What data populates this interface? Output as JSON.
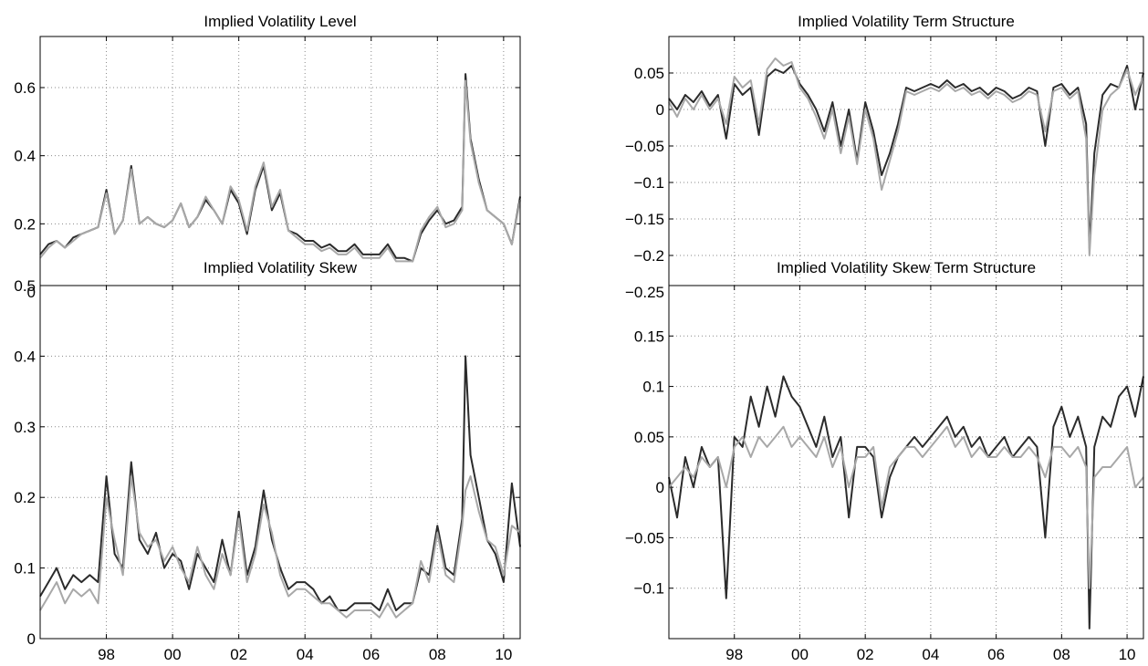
{
  "chart_data": [
    {
      "type": "line",
      "title": "Implied Volatility Level",
      "xlim": [
        1996.0,
        2010.5
      ],
      "ylim": [
        0,
        0.75
      ],
      "xticks": [
        1998,
        2000,
        2002,
        2004,
        2006,
        2008,
        2010
      ],
      "xtick_labels": [
        "98",
        "00",
        "02",
        "04",
        "06",
        "08",
        "10"
      ],
      "yticks": [
        0,
        0.2,
        0.4,
        0.6
      ],
      "ytick_labels": [
        "0",
        "0.2",
        "0.4",
        "0.6"
      ],
      "grid": true,
      "colors": [
        "#2b2b2b",
        "#a8a8a8"
      ],
      "x": [
        1996.0,
        1996.25,
        1996.5,
        1996.75,
        1997.0,
        1997.25,
        1997.5,
        1997.75,
        1998.0,
        1998.25,
        1998.5,
        1998.75,
        1999.0,
        1999.25,
        1999.5,
        1999.75,
        2000.0,
        2000.25,
        2000.5,
        2000.75,
        2001.0,
        2001.25,
        2001.5,
        2001.75,
        2002.0,
        2002.25,
        2002.5,
        2002.75,
        2003.0,
        2003.25,
        2003.5,
        2003.75,
        2004.0,
        2004.25,
        2004.5,
        2004.75,
        2005.0,
        2005.25,
        2005.5,
        2005.75,
        2006.0,
        2006.25,
        2006.5,
        2006.75,
        2007.0,
        2007.25,
        2007.5,
        2007.75,
        2008.0,
        2008.25,
        2008.5,
        2008.75,
        2008.85,
        2009.0,
        2009.25,
        2009.5,
        2009.75,
        2010.0,
        2010.25,
        2010.5
      ],
      "series": [
        {
          "values": [
            0.11,
            0.14,
            0.15,
            0.13,
            0.16,
            0.17,
            0.18,
            0.19,
            0.3,
            0.17,
            0.21,
            0.37,
            0.2,
            0.22,
            0.2,
            0.19,
            0.21,
            0.26,
            0.19,
            0.22,
            0.27,
            0.24,
            0.2,
            0.3,
            0.26,
            0.17,
            0.3,
            0.37,
            0.24,
            0.29,
            0.18,
            0.17,
            0.15,
            0.15,
            0.13,
            0.14,
            0.12,
            0.12,
            0.14,
            0.11,
            0.11,
            0.11,
            0.14,
            0.1,
            0.1,
            0.09,
            0.17,
            0.21,
            0.24,
            0.2,
            0.21,
            0.25,
            0.64,
            0.45,
            0.33,
            0.24,
            0.22,
            0.2,
            0.14,
            0.28
          ]
        },
        {
          "values": [
            0.1,
            0.13,
            0.15,
            0.13,
            0.15,
            0.17,
            0.18,
            0.19,
            0.29,
            0.17,
            0.21,
            0.36,
            0.2,
            0.22,
            0.2,
            0.19,
            0.21,
            0.26,
            0.19,
            0.22,
            0.28,
            0.24,
            0.2,
            0.31,
            0.27,
            0.18,
            0.31,
            0.38,
            0.25,
            0.3,
            0.18,
            0.16,
            0.14,
            0.14,
            0.12,
            0.13,
            0.11,
            0.11,
            0.13,
            0.1,
            0.1,
            0.1,
            0.13,
            0.09,
            0.09,
            0.09,
            0.18,
            0.22,
            0.25,
            0.19,
            0.2,
            0.24,
            0.62,
            0.44,
            0.32,
            0.24,
            0.22,
            0.2,
            0.14,
            0.27
          ]
        }
      ]
    },
    {
      "type": "line",
      "title": "Implied Volatility Term Structure",
      "xlim": [
        1996.0,
        2010.5
      ],
      "ylim": [
        -0.25,
        0.1
      ],
      "xticks": [
        1998,
        2000,
        2002,
        2004,
        2006,
        2008,
        2010
      ],
      "xtick_labels": [
        "98",
        "00",
        "02",
        "04",
        "06",
        "08",
        "10"
      ],
      "yticks": [
        -0.25,
        -0.2,
        -0.15,
        -0.1,
        -0.05,
        0,
        0.05
      ],
      "ytick_labels": [
        "−0.25",
        "−0.2",
        "−0.15",
        "−0.1",
        "−0.05",
        "0",
        "0.05"
      ],
      "grid": true,
      "colors": [
        "#2b2b2b",
        "#a8a8a8"
      ],
      "x": [
        1996.0,
        1996.25,
        1996.5,
        1996.75,
        1997.0,
        1997.25,
        1997.5,
        1997.75,
        1998.0,
        1998.25,
        1998.5,
        1998.75,
        1999.0,
        1999.25,
        1999.5,
        1999.75,
        2000.0,
        2000.25,
        2000.5,
        2000.75,
        2001.0,
        2001.25,
        2001.5,
        2001.75,
        2002.0,
        2002.25,
        2002.5,
        2002.75,
        2003.0,
        2003.25,
        2003.5,
        2003.75,
        2004.0,
        2004.25,
        2004.5,
        2004.75,
        2005.0,
        2005.25,
        2005.5,
        2005.75,
        2006.0,
        2006.25,
        2006.5,
        2006.75,
        2007.0,
        2007.25,
        2007.5,
        2007.75,
        2008.0,
        2008.25,
        2008.5,
        2008.75,
        2008.85,
        2009.0,
        2009.25,
        2009.5,
        2009.75,
        2010.0,
        2010.25,
        2010.5
      ],
      "series": [
        {
          "values": [
            0.015,
            0.0,
            0.02,
            0.01,
            0.025,
            0.005,
            0.02,
            -0.04,
            0.035,
            0.02,
            0.03,
            -0.035,
            0.045,
            0.055,
            0.05,
            0.06,
            0.035,
            0.02,
            0.0,
            -0.03,
            0.01,
            -0.05,
            0.0,
            -0.07,
            0.01,
            -0.03,
            -0.09,
            -0.06,
            -0.02,
            0.03,
            0.025,
            0.03,
            0.035,
            0.03,
            0.04,
            0.03,
            0.035,
            0.025,
            0.03,
            0.02,
            0.03,
            0.025,
            0.015,
            0.02,
            0.03,
            0.025,
            -0.05,
            0.03,
            0.035,
            0.02,
            0.03,
            -0.02,
            -0.19,
            -0.06,
            0.02,
            0.035,
            0.03,
            0.06,
            0.0,
            0.05
          ]
        },
        {
          "values": [
            0.01,
            -0.01,
            0.015,
            0.0,
            0.02,
            0.0,
            0.015,
            -0.02,
            0.045,
            0.03,
            0.04,
            -0.02,
            0.055,
            0.07,
            0.06,
            0.065,
            0.03,
            0.015,
            -0.01,
            -0.04,
            0.0,
            -0.06,
            -0.01,
            -0.075,
            0.0,
            -0.04,
            -0.11,
            -0.07,
            -0.03,
            0.025,
            0.02,
            0.025,
            0.03,
            0.025,
            0.035,
            0.025,
            0.03,
            0.02,
            0.025,
            0.015,
            0.025,
            0.02,
            0.01,
            0.015,
            0.025,
            0.02,
            -0.03,
            0.025,
            0.03,
            0.015,
            0.025,
            -0.04,
            -0.2,
            -0.09,
            0.0,
            0.02,
            0.03,
            0.055,
            0.02,
            0.045
          ]
        }
      ]
    },
    {
      "type": "line",
      "title": "Implied Volatility Skew",
      "xlim": [
        1996.0,
        2010.5
      ],
      "ylim": [
        0,
        0.5
      ],
      "xticks": [
        1998,
        2000,
        2002,
        2004,
        2006,
        2008,
        2010
      ],
      "xtick_labels": [
        "98",
        "00",
        "02",
        "04",
        "06",
        "08",
        "10"
      ],
      "yticks": [
        0,
        0.1,
        0.2,
        0.3,
        0.4,
        0.5
      ],
      "ytick_labels": [
        "0",
        "0.1",
        "0.2",
        "0.3",
        "0.4",
        "0.5"
      ],
      "grid": true,
      "colors": [
        "#2b2b2b",
        "#a8a8a8"
      ],
      "x": [
        1996.0,
        1996.25,
        1996.5,
        1996.75,
        1997.0,
        1997.25,
        1997.5,
        1997.75,
        1998.0,
        1998.25,
        1998.5,
        1998.75,
        1999.0,
        1999.25,
        1999.5,
        1999.75,
        2000.0,
        2000.25,
        2000.5,
        2000.75,
        2001.0,
        2001.25,
        2001.5,
        2001.75,
        2002.0,
        2002.25,
        2002.5,
        2002.75,
        2003.0,
        2003.25,
        2003.5,
        2003.75,
        2004.0,
        2004.25,
        2004.5,
        2004.75,
        2005.0,
        2005.25,
        2005.5,
        2005.75,
        2006.0,
        2006.25,
        2006.5,
        2006.75,
        2007.0,
        2007.25,
        2007.5,
        2007.75,
        2008.0,
        2008.25,
        2008.5,
        2008.75,
        2008.85,
        2009.0,
        2009.25,
        2009.5,
        2009.75,
        2010.0,
        2010.25,
        2010.5
      ],
      "series": [
        {
          "values": [
            0.06,
            0.08,
            0.1,
            0.07,
            0.09,
            0.08,
            0.09,
            0.08,
            0.23,
            0.12,
            0.1,
            0.25,
            0.14,
            0.12,
            0.15,
            0.1,
            0.12,
            0.11,
            0.07,
            0.12,
            0.1,
            0.08,
            0.14,
            0.09,
            0.18,
            0.09,
            0.13,
            0.21,
            0.14,
            0.1,
            0.07,
            0.08,
            0.08,
            0.07,
            0.05,
            0.06,
            0.04,
            0.04,
            0.05,
            0.05,
            0.05,
            0.04,
            0.07,
            0.04,
            0.05,
            0.05,
            0.1,
            0.09,
            0.16,
            0.1,
            0.09,
            0.17,
            0.4,
            0.26,
            0.2,
            0.14,
            0.12,
            0.08,
            0.22,
            0.13
          ]
        },
        {
          "values": [
            0.04,
            0.06,
            0.08,
            0.05,
            0.07,
            0.06,
            0.07,
            0.05,
            0.2,
            0.14,
            0.09,
            0.23,
            0.15,
            0.13,
            0.14,
            0.11,
            0.13,
            0.1,
            0.08,
            0.13,
            0.09,
            0.07,
            0.12,
            0.09,
            0.17,
            0.08,
            0.12,
            0.19,
            0.15,
            0.09,
            0.06,
            0.07,
            0.07,
            0.06,
            0.05,
            0.05,
            0.04,
            0.03,
            0.04,
            0.04,
            0.04,
            0.03,
            0.05,
            0.03,
            0.04,
            0.05,
            0.11,
            0.08,
            0.15,
            0.09,
            0.08,
            0.16,
            0.21,
            0.23,
            0.18,
            0.14,
            0.13,
            0.09,
            0.16,
            0.15
          ]
        }
      ]
    },
    {
      "type": "line",
      "title": "Implied Volatility Skew Term Structure",
      "xlim": [
        1996.0,
        2010.5
      ],
      "ylim": [
        -0.15,
        0.2
      ],
      "xticks": [
        1998,
        2000,
        2002,
        2004,
        2006,
        2008,
        2010
      ],
      "xtick_labels": [
        "98",
        "00",
        "02",
        "04",
        "06",
        "08",
        "10"
      ],
      "yticks": [
        -0.1,
        -0.05,
        0,
        0.05,
        0.1,
        0.15
      ],
      "ytick_labels": [
        "−0.1",
        "−0.05",
        "0",
        "0.05",
        "0.1",
        "0.15"
      ],
      "grid": true,
      "colors": [
        "#2b2b2b",
        "#a8a8a8"
      ],
      "x": [
        1996.0,
        1996.25,
        1996.5,
        1996.75,
        1997.0,
        1997.25,
        1997.5,
        1997.75,
        1998.0,
        1998.25,
        1998.5,
        1998.75,
        1999.0,
        1999.25,
        1999.5,
        1999.75,
        2000.0,
        2000.25,
        2000.5,
        2000.75,
        2001.0,
        2001.25,
        2001.5,
        2001.75,
        2002.0,
        2002.25,
        2002.5,
        2002.75,
        2003.0,
        2003.25,
        2003.5,
        2003.75,
        2004.0,
        2004.25,
        2004.5,
        2004.75,
        2005.0,
        2005.25,
        2005.5,
        2005.75,
        2006.0,
        2006.25,
        2006.5,
        2006.75,
        2007.0,
        2007.25,
        2007.5,
        2007.75,
        2008.0,
        2008.25,
        2008.5,
        2008.75,
        2008.85,
        2009.0,
        2009.25,
        2009.5,
        2009.75,
        2010.0,
        2010.25,
        2010.5
      ],
      "series": [
        {
          "values": [
            0.01,
            -0.03,
            0.03,
            0.0,
            0.04,
            0.02,
            0.03,
            -0.11,
            0.05,
            0.04,
            0.09,
            0.06,
            0.1,
            0.07,
            0.11,
            0.09,
            0.08,
            0.06,
            0.04,
            0.07,
            0.03,
            0.05,
            -0.03,
            0.04,
            0.04,
            0.03,
            -0.03,
            0.01,
            0.03,
            0.04,
            0.05,
            0.04,
            0.05,
            0.06,
            0.07,
            0.05,
            0.06,
            0.04,
            0.05,
            0.03,
            0.04,
            0.05,
            0.03,
            0.04,
            0.05,
            0.04,
            -0.05,
            0.06,
            0.08,
            0.05,
            0.07,
            0.04,
            -0.14,
            0.04,
            0.07,
            0.06,
            0.09,
            0.1,
            0.07,
            0.11
          ]
        },
        {
          "values": [
            0.0,
            0.01,
            0.02,
            0.01,
            0.03,
            0.02,
            0.03,
            0.0,
            0.04,
            0.05,
            0.03,
            0.05,
            0.04,
            0.05,
            0.06,
            0.04,
            0.05,
            0.04,
            0.03,
            0.05,
            0.02,
            0.04,
            0.0,
            0.03,
            0.03,
            0.04,
            -0.02,
            0.02,
            0.03,
            0.04,
            0.04,
            0.03,
            0.04,
            0.05,
            0.06,
            0.04,
            0.05,
            0.03,
            0.04,
            0.03,
            0.03,
            0.04,
            0.03,
            0.03,
            0.04,
            0.03,
            0.01,
            0.04,
            0.04,
            0.03,
            0.04,
            0.02,
            -0.1,
            0.01,
            0.02,
            0.02,
            0.03,
            0.04,
            0.0,
            0.01
          ]
        }
      ]
    }
  ]
}
